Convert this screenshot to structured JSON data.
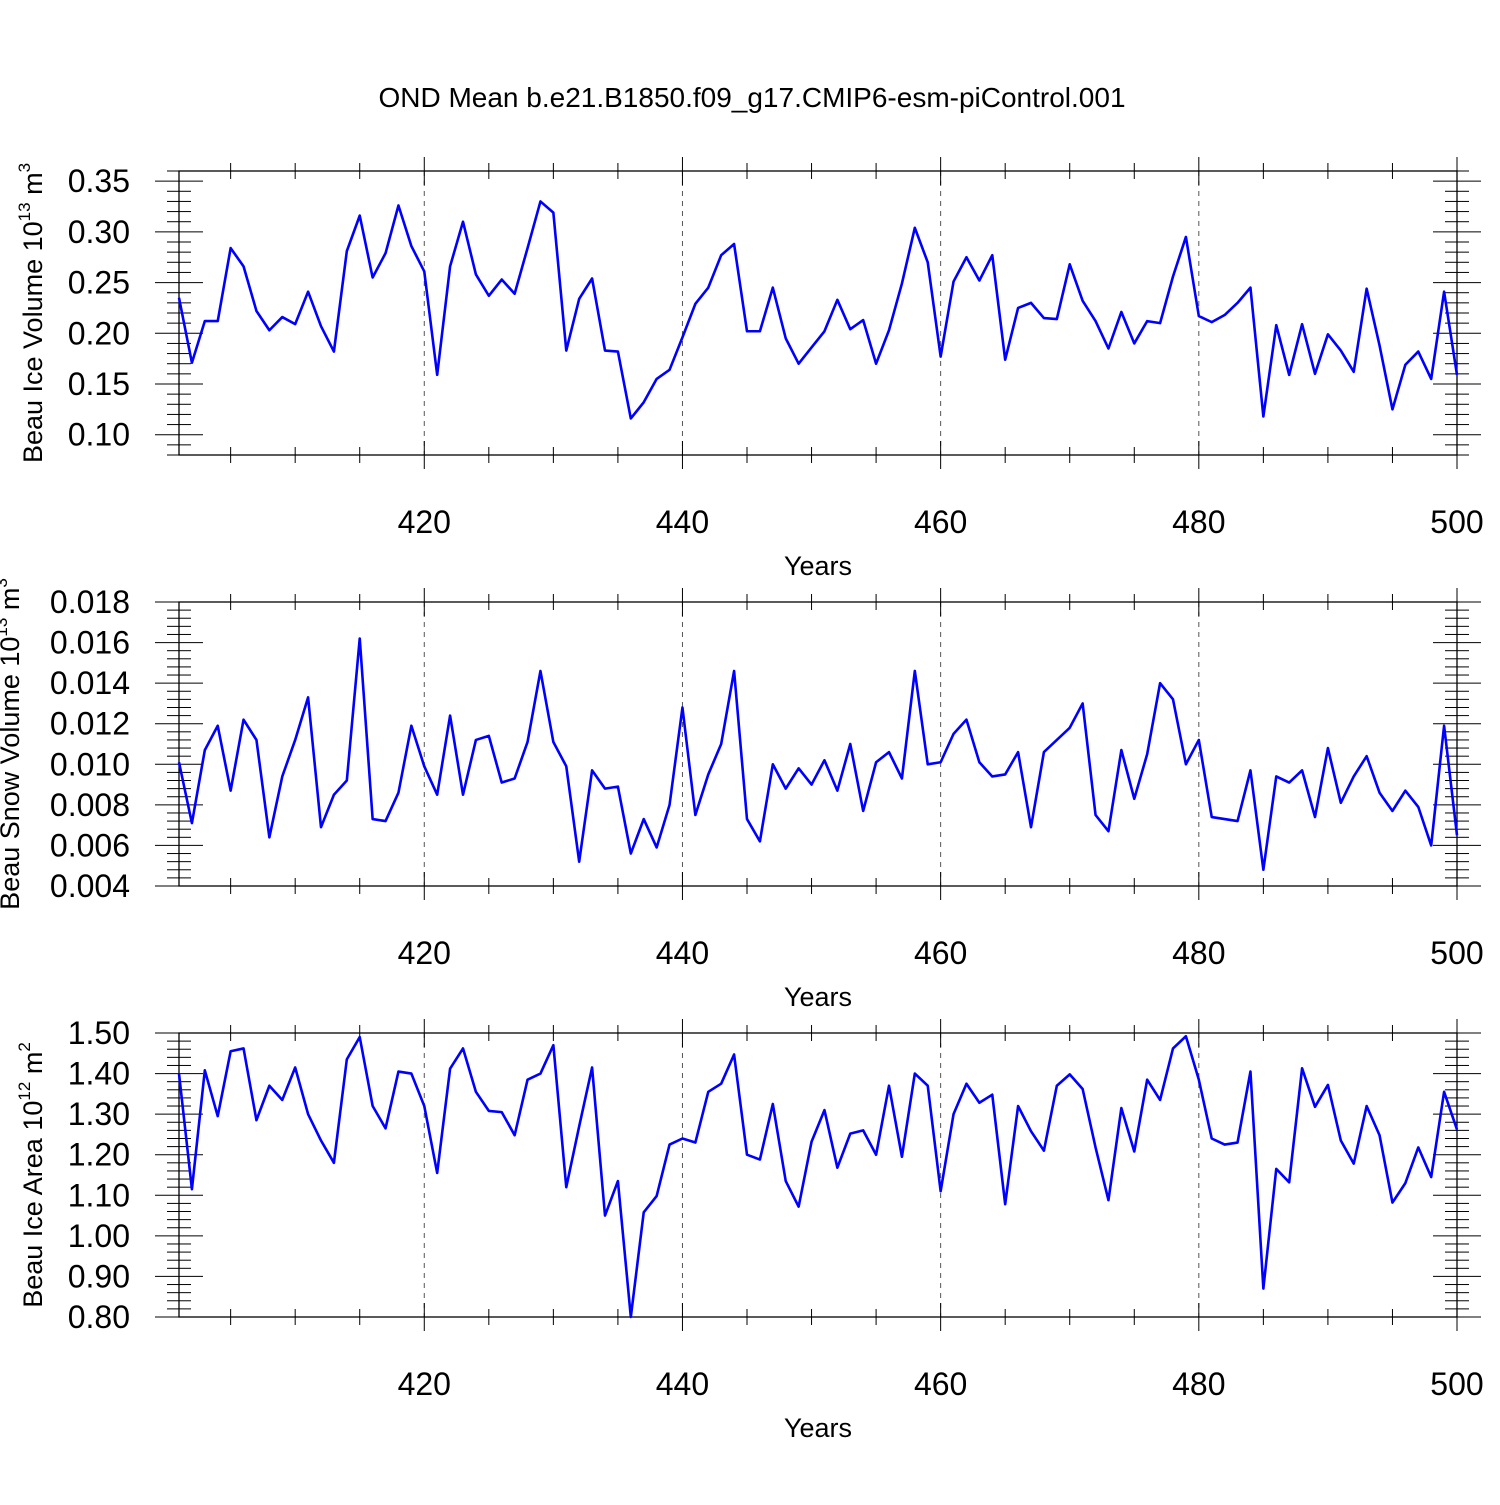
{
  "title": "OND Mean b.e21.B1850.f09_g17.CMIP6-esm-piControl.001",
  "colors": {
    "line": "#0000ff",
    "axis": "#000000",
    "grid": "#555555",
    "background": "#ffffff"
  },
  "chart_data": [
    {
      "type": "line",
      "ylabel": "Beau Ice Volume",
      "ylabel_unit_base": "10",
      "ylabel_unit_exp": "13",
      "ylabel_unit_m": "m",
      "ylabel_unit_mexp": "3",
      "xlabel": "Years",
      "xlim": [
        401,
        500
      ],
      "ylim": [
        0.08,
        0.36
      ],
      "x_ticks": [
        420,
        440,
        460,
        480,
        500
      ],
      "x_tick_labels": [
        "420",
        "440",
        "460",
        "480",
        "500"
      ],
      "y_ticks": [
        0.1,
        0.15,
        0.2,
        0.25,
        0.3,
        0.35
      ],
      "y_tick_labels": [
        "0.10",
        "0.15",
        "0.20",
        "0.25",
        "0.30",
        "0.35"
      ],
      "x_start": 401,
      "values": [
        0.235,
        0.171,
        0.212,
        0.212,
        0.284,
        0.266,
        0.222,
        0.203,
        0.216,
        0.209,
        0.241,
        0.207,
        0.182,
        0.281,
        0.316,
        0.255,
        0.279,
        0.326,
        0.286,
        0.261,
        0.159,
        0.266,
        0.31,
        0.258,
        0.237,
        0.253,
        0.239,
        0.284,
        0.33,
        0.319,
        0.183,
        0.234,
        0.254,
        0.183,
        0.182,
        0.116,
        0.132,
        0.155,
        0.164,
        0.196,
        0.229,
        0.245,
        0.277,
        0.288,
        0.202,
        0.202,
        0.245,
        0.195,
        0.17,
        0.186,
        0.202,
        0.233,
        0.204,
        0.213,
        0.17,
        0.203,
        0.249,
        0.304,
        0.27,
        0.177,
        0.251,
        0.275,
        0.252,
        0.277,
        0.174,
        0.225,
        0.23,
        0.215,
        0.214,
        0.268,
        0.232,
        0.212,
        0.185,
        0.221,
        0.19,
        0.212,
        0.21,
        0.256,
        0.295,
        0.217,
        0.211,
        0.218,
        0.23,
        0.245,
        0.118,
        0.208,
        0.159,
        0.209,
        0.16,
        0.199,
        0.183,
        0.162,
        0.244,
        0.188,
        0.125,
        0.169,
        0.182,
        0.155,
        0.241,
        0.159
      ]
    },
    {
      "type": "line",
      "ylabel": "Beau Snow Volume",
      "ylabel_unit_base": "10",
      "ylabel_unit_exp": "13",
      "ylabel_unit_m": "m",
      "ylabel_unit_mexp": "3",
      "xlabel": "Years",
      "xlim": [
        401,
        500
      ],
      "ylim": [
        0.004,
        0.018
      ],
      "x_ticks": [
        420,
        440,
        460,
        480,
        500
      ],
      "x_tick_labels": [
        "420",
        "440",
        "460",
        "480",
        "500"
      ],
      "y_ticks": [
        0.004,
        0.006,
        0.008,
        0.01,
        0.012,
        0.014,
        0.016,
        0.018
      ],
      "y_tick_labels": [
        "0.004",
        "0.006",
        "0.008",
        "0.010",
        "0.012",
        "0.014",
        "0.016",
        "0.018"
      ],
      "x_start": 401,
      "values": [
        0.0101,
        0.0071,
        0.0107,
        0.0119,
        0.0087,
        0.0122,
        0.0112,
        0.0064,
        0.0094,
        0.0112,
        0.0133,
        0.0069,
        0.0085,
        0.0092,
        0.0162,
        0.0073,
        0.0072,
        0.0086,
        0.0119,
        0.0099,
        0.0085,
        0.0124,
        0.0085,
        0.0112,
        0.0114,
        0.0091,
        0.0093,
        0.0111,
        0.0146,
        0.0111,
        0.0099,
        0.0052,
        0.0097,
        0.0088,
        0.0089,
        0.0056,
        0.0073,
        0.0059,
        0.008,
        0.0128,
        0.0075,
        0.0095,
        0.011,
        0.0146,
        0.0073,
        0.0062,
        0.01,
        0.0088,
        0.0098,
        0.009,
        0.0102,
        0.0087,
        0.011,
        0.0077,
        0.0101,
        0.0106,
        0.0093,
        0.0146,
        0.01,
        0.0101,
        0.0115,
        0.0122,
        0.0101,
        0.0094,
        0.0095,
        0.0106,
        0.0069,
        0.0106,
        0.0112,
        0.0118,
        0.013,
        0.0075,
        0.0067,
        0.0107,
        0.0083,
        0.0105,
        0.014,
        0.0132,
        0.01,
        0.0112,
        0.0074,
        0.0073,
        0.0072,
        0.0097,
        0.0048,
        0.0094,
        0.0091,
        0.0097,
        0.0074,
        0.0108,
        0.0081,
        0.0094,
        0.0104,
        0.0086,
        0.0077,
        0.0087,
        0.0079,
        0.006,
        0.0119,
        0.0065
      ]
    },
    {
      "type": "line",
      "ylabel": "Beau Ice Area",
      "ylabel_unit_base": "10",
      "ylabel_unit_exp": "12",
      "ylabel_unit_m": "m",
      "ylabel_unit_mexp": "2",
      "xlabel": "Years",
      "xlim": [
        401,
        500
      ],
      "ylim": [
        0.8,
        1.5
      ],
      "x_ticks": [
        420,
        440,
        460,
        480,
        500
      ],
      "x_tick_labels": [
        "420",
        "440",
        "460",
        "480",
        "500"
      ],
      "y_ticks": [
        0.8,
        0.9,
        1.0,
        1.1,
        1.2,
        1.3,
        1.4,
        1.5
      ],
      "y_tick_labels": [
        "0.80",
        "0.90",
        "1.00",
        "1.10",
        "1.20",
        "1.30",
        "1.40",
        "1.50"
      ],
      "x_start": 401,
      "values": [
        1.4,
        1.115,
        1.408,
        1.295,
        1.455,
        1.462,
        1.285,
        1.37,
        1.335,
        1.415,
        1.3,
        1.235,
        1.18,
        1.435,
        1.49,
        1.32,
        1.265,
        1.405,
        1.4,
        1.32,
        1.155,
        1.412,
        1.462,
        1.355,
        1.308,
        1.305,
        1.248,
        1.385,
        1.4,
        1.47,
        1.12,
        1.27,
        1.415,
        1.05,
        1.135,
        0.8,
        1.058,
        1.098,
        1.225,
        1.24,
        1.23,
        1.355,
        1.375,
        1.447,
        1.2,
        1.188,
        1.325,
        1.135,
        1.072,
        1.232,
        1.31,
        1.168,
        1.252,
        1.26,
        1.2,
        1.37,
        1.195,
        1.4,
        1.37,
        1.11,
        1.3,
        1.375,
        1.328,
        1.348,
        1.078,
        1.32,
        1.258,
        1.21,
        1.37,
        1.398,
        1.362,
        1.218,
        1.088,
        1.315,
        1.208,
        1.385,
        1.335,
        1.462,
        1.492,
        1.385,
        1.24,
        1.225,
        1.23,
        1.405,
        0.87,
        1.165,
        1.132,
        1.413,
        1.318,
        1.372,
        1.235,
        1.178,
        1.32,
        1.248,
        1.082,
        1.13,
        1.218,
        1.145,
        1.355,
        1.262
      ]
    }
  ]
}
